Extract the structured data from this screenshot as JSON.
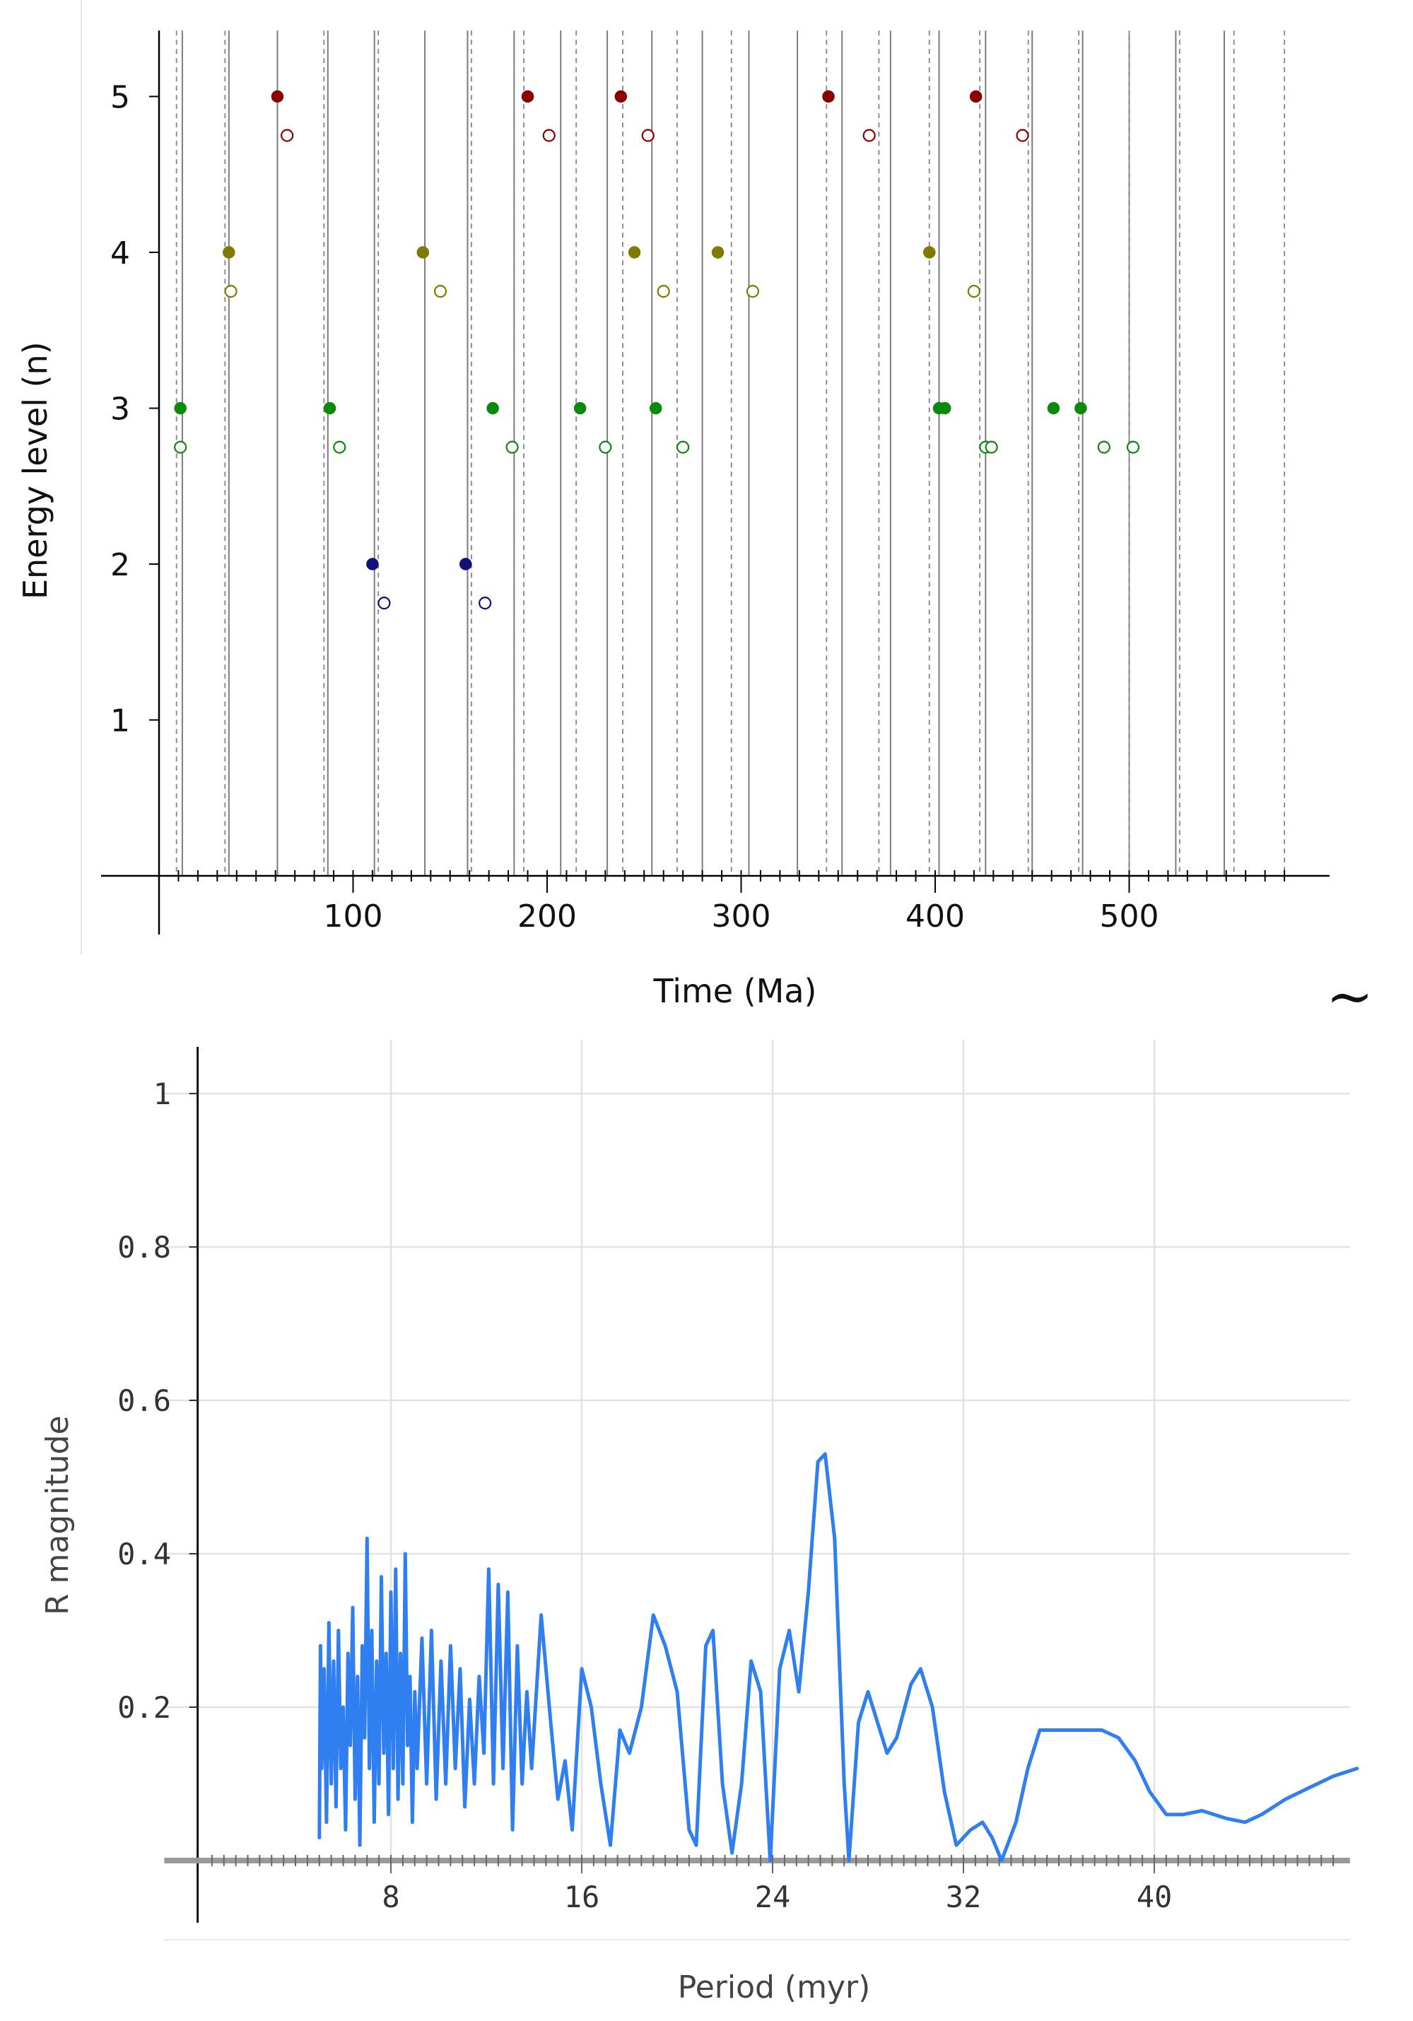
{
  "colors": {
    "level5": "#8b0000",
    "level4": "#7f7a00",
    "level3": "#0a8a0a",
    "level2": "#11117a",
    "curve": "#2f7ff0"
  },
  "connector_symbol": "~",
  "chart_data": [
    {
      "type": "scatter",
      "xlabel": "Time (Ma)",
      "ylabel": "Energy level (n)",
      "xlim": [
        0,
        585
      ],
      "ylim": [
        0,
        5.4
      ],
      "x_ticks": [
        100,
        200,
        300,
        400,
        500
      ],
      "y_ticks": [
        1,
        2,
        3,
        4,
        5
      ],
      "grid": false,
      "solid_lines": [
        12,
        36,
        61,
        87,
        111,
        137,
        159,
        183,
        207,
        231,
        254,
        280,
        304,
        329,
        352,
        377,
        402,
        426,
        450,
        476,
        500,
        524,
        549
      ],
      "dashed_lines": [
        9,
        34,
        85,
        113,
        161,
        188,
        215,
        239,
        267,
        295,
        344,
        371,
        397,
        423,
        448,
        474,
        500,
        526,
        554,
        580
      ],
      "series": [
        {
          "level": 5,
          "color_key": "level5",
          "filled": [
            61,
            190,
            238,
            345,
            421
          ],
          "open": [
            66,
            201,
            252,
            366,
            445
          ]
        },
        {
          "level": 4,
          "color_key": "level4",
          "filled": [
            36,
            136,
            245,
            288,
            397
          ],
          "open": [
            37,
            145,
            260,
            306,
            420
          ]
        },
        {
          "level": 3,
          "color_key": "level3",
          "filled": [
            11,
            88,
            172,
            217,
            256,
            402,
            405,
            461,
            475
          ],
          "open": [
            11,
            93,
            182,
            230,
            270,
            426,
            429,
            487,
            502
          ]
        },
        {
          "level": 2,
          "color_key": "level2",
          "filled": [
            110,
            158
          ],
          "open": [
            116,
            168
          ]
        }
      ]
    },
    {
      "type": "line",
      "xlabel": "Period (myr)",
      "ylabel": "R magnitude",
      "xlim": [
        -1.5,
        48.5
      ],
      "ylim": [
        0,
        1.07
      ],
      "x_ticks": [
        8,
        16,
        24,
        32,
        40
      ],
      "y_ticks": [
        0.2,
        0.4,
        0.6,
        0.8,
        1
      ],
      "grid": true,
      "series": [
        {
          "points": [
            [
              5.0,
              0.03
            ],
            [
              5.05,
              0.28
            ],
            [
              5.1,
              0.12
            ],
            [
              5.2,
              0.25
            ],
            [
              5.3,
              0.05
            ],
            [
              5.4,
              0.31
            ],
            [
              5.5,
              0.1
            ],
            [
              5.6,
              0.26
            ],
            [
              5.7,
              0.07
            ],
            [
              5.8,
              0.3
            ],
            [
              5.9,
              0.12
            ],
            [
              6.0,
              0.2
            ],
            [
              6.1,
              0.04
            ],
            [
              6.2,
              0.27
            ],
            [
              6.3,
              0.15
            ],
            [
              6.4,
              0.33
            ],
            [
              6.5,
              0.08
            ],
            [
              6.6,
              0.24
            ],
            [
              6.7,
              0.02
            ],
            [
              6.8,
              0.28
            ],
            [
              6.9,
              0.16
            ],
            [
              7.0,
              0.42
            ],
            [
              7.1,
              0.12
            ],
            [
              7.2,
              0.3
            ],
            [
              7.3,
              0.05
            ],
            [
              7.4,
              0.26
            ],
            [
              7.5,
              0.1
            ],
            [
              7.6,
              0.37
            ],
            [
              7.7,
              0.14
            ],
            [
              7.8,
              0.27
            ],
            [
              7.9,
              0.06
            ],
            [
              8.0,
              0.35
            ],
            [
              8.1,
              0.12
            ],
            [
              8.2,
              0.38
            ],
            [
              8.3,
              0.08
            ],
            [
              8.4,
              0.27
            ],
            [
              8.5,
              0.1
            ],
            [
              8.6,
              0.4
            ],
            [
              8.7,
              0.15
            ],
            [
              8.8,
              0.24
            ],
            [
              8.9,
              0.05
            ],
            [
              9.0,
              0.22
            ],
            [
              9.1,
              0.12
            ],
            [
              9.3,
              0.29
            ],
            [
              9.5,
              0.1
            ],
            [
              9.7,
              0.3
            ],
            [
              9.9,
              0.08
            ],
            [
              10.1,
              0.26
            ],
            [
              10.3,
              0.1
            ],
            [
              10.5,
              0.28
            ],
            [
              10.7,
              0.12
            ],
            [
              10.9,
              0.25
            ],
            [
              11.1,
              0.07
            ],
            [
              11.3,
              0.21
            ],
            [
              11.5,
              0.1
            ],
            [
              11.7,
              0.24
            ],
            [
              11.9,
              0.14
            ],
            [
              12.1,
              0.38
            ],
            [
              12.3,
              0.1
            ],
            [
              12.5,
              0.36
            ],
            [
              12.7,
              0.12
            ],
            [
              12.9,
              0.35
            ],
            [
              13.1,
              0.04
            ],
            [
              13.3,
              0.28
            ],
            [
              13.5,
              0.1
            ],
            [
              13.7,
              0.22
            ],
            [
              13.9,
              0.12
            ],
            [
              14.3,
              0.32
            ],
            [
              14.7,
              0.18
            ],
            [
              15.0,
              0.08
            ],
            [
              15.3,
              0.13
            ],
            [
              15.6,
              0.04
            ],
            [
              16.0,
              0.25
            ],
            [
              16.4,
              0.2
            ],
            [
              16.8,
              0.1
            ],
            [
              17.2,
              0.02
            ],
            [
              17.6,
              0.17
            ],
            [
              18.0,
              0.14
            ],
            [
              18.5,
              0.2
            ],
            [
              19.0,
              0.32
            ],
            [
              19.5,
              0.28
            ],
            [
              20.0,
              0.22
            ],
            [
              20.5,
              0.04
            ],
            [
              20.8,
              0.02
            ],
            [
              21.2,
              0.28
            ],
            [
              21.5,
              0.3
            ],
            [
              21.9,
              0.1
            ],
            [
              22.3,
              0.01
            ],
            [
              22.7,
              0.1
            ],
            [
              23.1,
              0.26
            ],
            [
              23.5,
              0.22
            ],
            [
              23.9,
              0.0
            ],
            [
              24.3,
              0.25
            ],
            [
              24.7,
              0.3
            ],
            [
              25.1,
              0.22
            ],
            [
              25.5,
              0.35
            ],
            [
              25.9,
              0.52
            ],
            [
              26.2,
              0.53
            ],
            [
              26.6,
              0.42
            ],
            [
              27.0,
              0.1
            ],
            [
              27.2,
              0.0
            ],
            [
              27.6,
              0.18
            ],
            [
              28.0,
              0.22
            ],
            [
              28.4,
              0.18
            ],
            [
              28.8,
              0.14
            ],
            [
              29.2,
              0.16
            ],
            [
              29.8,
              0.23
            ],
            [
              30.2,
              0.25
            ],
            [
              30.7,
              0.2
            ],
            [
              31.2,
              0.09
            ],
            [
              31.7,
              0.02
            ],
            [
              32.3,
              0.04
            ],
            [
              32.8,
              0.05
            ],
            [
              33.2,
              0.03
            ],
            [
              33.6,
              0.0
            ],
            [
              34.2,
              0.05
            ],
            [
              34.7,
              0.12
            ],
            [
              35.2,
              0.17
            ],
            [
              36.0,
              0.17
            ],
            [
              37.0,
              0.17
            ],
            [
              37.8,
              0.17
            ],
            [
              38.5,
              0.16
            ],
            [
              39.2,
              0.13
            ],
            [
              39.8,
              0.09
            ],
            [
              40.5,
              0.06
            ],
            [
              41.2,
              0.06
            ],
            [
              42.0,
              0.065
            ],
            [
              43.0,
              0.055
            ],
            [
              43.8,
              0.05
            ],
            [
              44.5,
              0.06
            ],
            [
              45.5,
              0.08
            ],
            [
              46.5,
              0.095
            ],
            [
              47.5,
              0.11
            ],
            [
              48.5,
              0.12
            ]
          ]
        }
      ]
    }
  ]
}
